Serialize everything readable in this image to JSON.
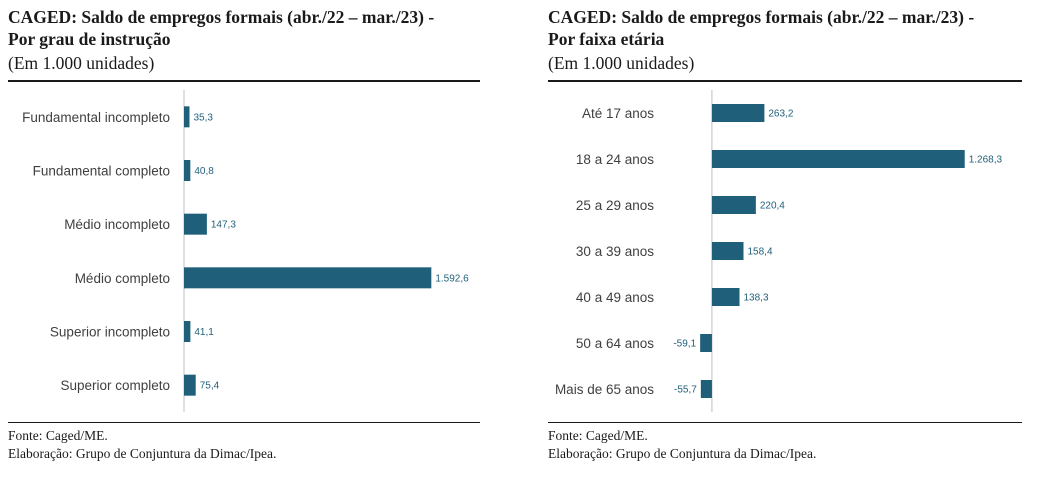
{
  "panels": [
    {
      "title": "CAGED: Saldo de empregos formais (abr./22 – mar./23) -\nPor grau de instrução",
      "unit": "(Em 1.000 unidades)",
      "source": "Fonte: Caged/ME.",
      "credit": "Elaboração: Grupo de Conjuntura da Dimac/Ipea."
    },
    {
      "title": "CAGED: Saldo de empregos formais (abr./22 – mar./23) -\nPor faixa etária",
      "unit": "(Em 1.000 unidades)",
      "source": "Fonte: Caged/ME.",
      "credit": "Elaboração: Grupo de Conjuntura da Dimac/Ipea."
    }
  ],
  "bar_color": "#1f5f7a",
  "chart_data": [
    {
      "type": "bar",
      "orientation": "horizontal",
      "title": "CAGED: Saldo de empregos formais (abr./22 – mar./23) - Por grau de instrução",
      "categories": [
        "Fundamental incompleto",
        "Fundamental completo",
        "Médio incompleto",
        "Médio completo",
        "Superior incompleto",
        "Superior completo"
      ],
      "values": [
        35.3,
        40.8,
        147.3,
        1592.6,
        41.1,
        75.4
      ],
      "value_labels": [
        "35,3",
        "40,8",
        "147,3",
        "1.592,6",
        "41,1",
        "75,4"
      ],
      "xlim": [
        0,
        1700
      ],
      "grid": false,
      "legend": "none"
    },
    {
      "type": "bar",
      "orientation": "horizontal",
      "title": "CAGED: Saldo de empregos formais (abr./22 – mar./23) - Por faixa etária",
      "categories": [
        "Até 17 anos",
        "18 a 24 anos",
        "25 a 29 anos",
        "30 a 39 anos",
        "40 a 49 anos",
        "50 a 64 anos",
        "Mais de 65 anos"
      ],
      "values": [
        263.2,
        1268.3,
        220.4,
        158.4,
        138.3,
        -59.1,
        -55.7
      ],
      "value_labels": [
        "263,2",
        "1.268,3",
        "220,4",
        "158,4",
        "138,3",
        "-59,1",
        "-55,7"
      ],
      "xlim": [
        -100,
        1350
      ],
      "grid": false,
      "legend": "none"
    }
  ]
}
